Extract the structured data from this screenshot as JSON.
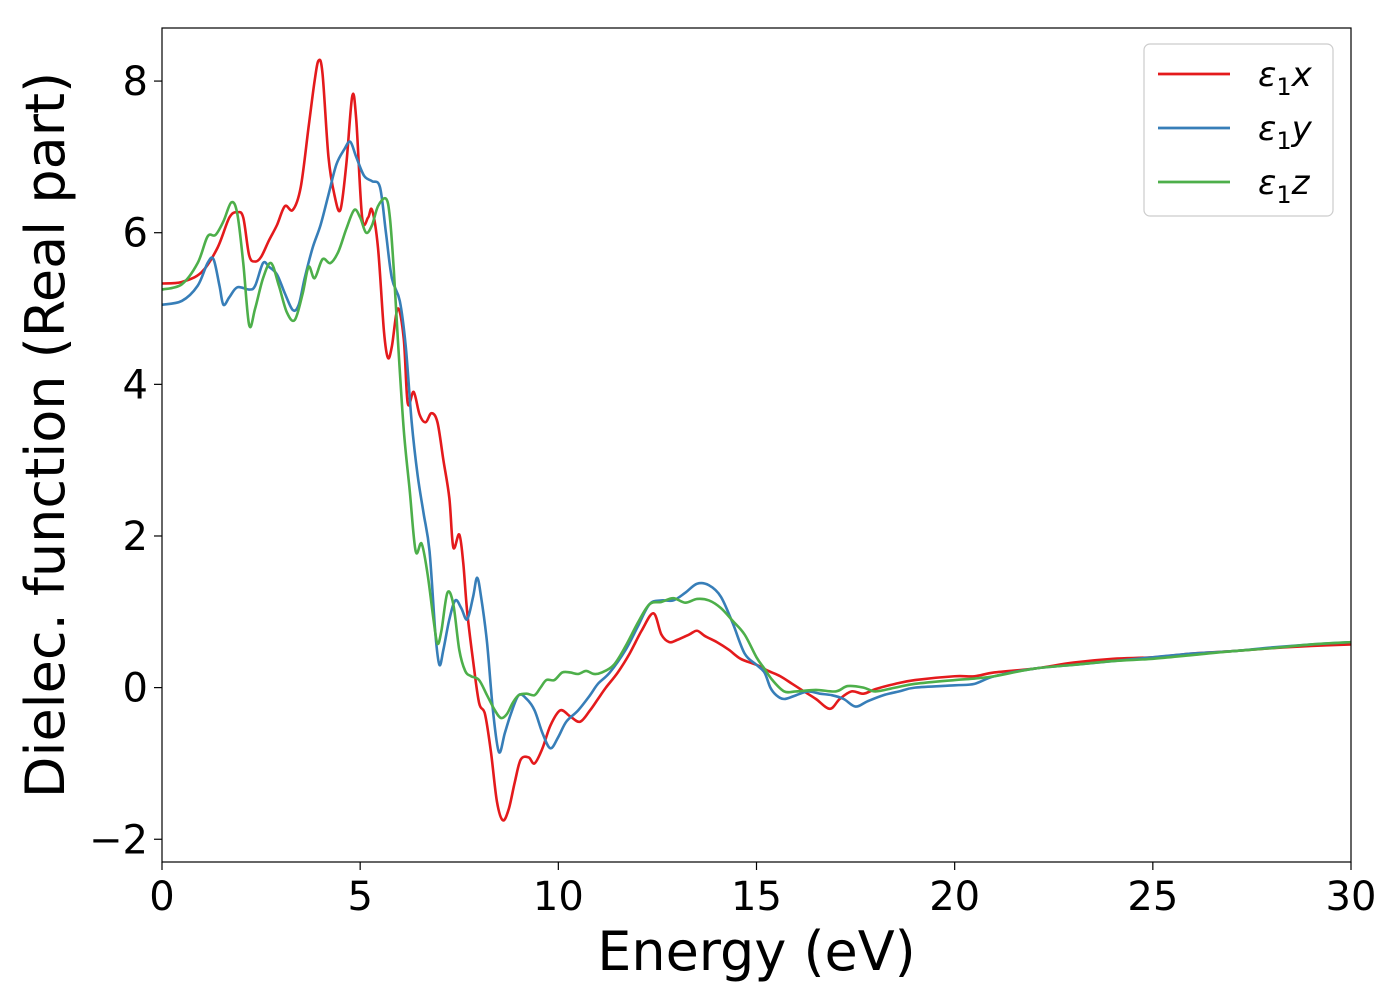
{
  "chart_data": {
    "type": "line",
    "title": "",
    "xlabel": "Energy (eV)",
    "ylabel": "Dielec. function (Real part)",
    "xlim": [
      0,
      30
    ],
    "ylim": [
      -2.3,
      8.7
    ],
    "xticks": [
      0,
      5,
      10,
      15,
      20,
      25,
      30
    ],
    "yticks": [
      -2,
      0,
      2,
      4,
      6,
      8
    ],
    "xtick_labels": [
      "0",
      "5",
      "10",
      "15",
      "20",
      "25",
      "30"
    ],
    "ytick_labels": [
      "−2",
      "0",
      "2",
      "4",
      "6",
      "8"
    ],
    "grid": false,
    "legend": "top-right",
    "series": [
      {
        "name": "ε₁x",
        "label_main": "ε",
        "label_sub": "1",
        "label_tail": "x",
        "color": "#e41a1c",
        "points": [
          [
            0,
            5.33
          ],
          [
            0.5,
            5.35
          ],
          [
            1.0,
            5.48
          ],
          [
            1.4,
            5.8
          ],
          [
            1.7,
            6.2
          ],
          [
            1.9,
            6.27
          ],
          [
            2.05,
            6.2
          ],
          [
            2.2,
            5.7
          ],
          [
            2.35,
            5.62
          ],
          [
            2.5,
            5.68
          ],
          [
            2.7,
            5.9
          ],
          [
            2.9,
            6.1
          ],
          [
            3.1,
            6.35
          ],
          [
            3.3,
            6.3
          ],
          [
            3.5,
            6.6
          ],
          [
            3.7,
            7.4
          ],
          [
            3.85,
            8.0
          ],
          [
            3.95,
            8.27
          ],
          [
            4.05,
            8.1
          ],
          [
            4.2,
            7.0
          ],
          [
            4.35,
            6.5
          ],
          [
            4.5,
            6.3
          ],
          [
            4.65,
            6.9
          ],
          [
            4.8,
            7.8
          ],
          [
            4.9,
            7.5
          ],
          [
            5.05,
            6.2
          ],
          [
            5.2,
            6.2
          ],
          [
            5.3,
            6.3
          ],
          [
            5.45,
            5.8
          ],
          [
            5.6,
            4.7
          ],
          [
            5.7,
            4.35
          ],
          [
            5.8,
            4.5
          ],
          [
            5.95,
            5.0
          ],
          [
            6.1,
            4.6
          ],
          [
            6.2,
            3.75
          ],
          [
            6.35,
            3.9
          ],
          [
            6.5,
            3.6
          ],
          [
            6.65,
            3.5
          ],
          [
            6.8,
            3.62
          ],
          [
            6.95,
            3.5
          ],
          [
            7.1,
            3.0
          ],
          [
            7.25,
            2.5
          ],
          [
            7.35,
            1.85
          ],
          [
            7.5,
            2.02
          ],
          [
            7.6,
            1.65
          ],
          [
            7.7,
            1.0
          ],
          [
            7.85,
            0.35
          ],
          [
            8.0,
            -0.2
          ],
          [
            8.15,
            -0.35
          ],
          [
            8.3,
            -0.85
          ],
          [
            8.45,
            -1.5
          ],
          [
            8.6,
            -1.75
          ],
          [
            8.75,
            -1.6
          ],
          [
            8.9,
            -1.25
          ],
          [
            9.05,
            -0.95
          ],
          [
            9.25,
            -0.92
          ],
          [
            9.4,
            -1.0
          ],
          [
            9.6,
            -0.8
          ],
          [
            9.8,
            -0.5
          ],
          [
            10.05,
            -0.3
          ],
          [
            10.3,
            -0.38
          ],
          [
            10.55,
            -0.45
          ],
          [
            10.8,
            -0.3
          ],
          [
            11.0,
            -0.15
          ],
          [
            11.2,
            0.0
          ],
          [
            11.5,
            0.2
          ],
          [
            11.8,
            0.45
          ],
          [
            12.1,
            0.75
          ],
          [
            12.4,
            0.98
          ],
          [
            12.6,
            0.7
          ],
          [
            12.8,
            0.6
          ],
          [
            13.0,
            0.63
          ],
          [
            13.3,
            0.7
          ],
          [
            13.5,
            0.75
          ],
          [
            13.7,
            0.68
          ],
          [
            14.0,
            0.6
          ],
          [
            14.3,
            0.5
          ],
          [
            14.6,
            0.38
          ],
          [
            15.0,
            0.3
          ],
          [
            15.3,
            0.22
          ],
          [
            15.6,
            0.15
          ],
          [
            15.9,
            0.05
          ],
          [
            16.2,
            -0.05
          ],
          [
            16.5,
            -0.15
          ],
          [
            16.85,
            -0.28
          ],
          [
            17.1,
            -0.15
          ],
          [
            17.4,
            -0.05
          ],
          [
            17.7,
            -0.08
          ],
          [
            18.0,
            -0.02
          ],
          [
            18.5,
            0.05
          ],
          [
            19.0,
            0.1
          ],
          [
            20.0,
            0.15
          ],
          [
            20.5,
            0.15
          ],
          [
            21.0,
            0.2
          ],
          [
            22.0,
            0.25
          ],
          [
            23.0,
            0.33
          ],
          [
            24.0,
            0.38
          ],
          [
            25.0,
            0.4
          ],
          [
            26.0,
            0.45
          ],
          [
            27.0,
            0.48
          ],
          [
            28.0,
            0.52
          ],
          [
            29.0,
            0.55
          ],
          [
            30.0,
            0.57
          ]
        ]
      },
      {
        "name": "ε₁y",
        "label_main": "ε",
        "label_sub": "1",
        "label_tail": "y",
        "color": "#377eb8",
        "points": [
          [
            0,
            5.05
          ],
          [
            0.5,
            5.1
          ],
          [
            0.9,
            5.3
          ],
          [
            1.15,
            5.6
          ],
          [
            1.3,
            5.65
          ],
          [
            1.45,
            5.3
          ],
          [
            1.55,
            5.05
          ],
          [
            1.7,
            5.15
          ],
          [
            1.9,
            5.28
          ],
          [
            2.2,
            5.25
          ],
          [
            2.35,
            5.3
          ],
          [
            2.55,
            5.6
          ],
          [
            2.7,
            5.55
          ],
          [
            2.9,
            5.45
          ],
          [
            3.1,
            5.2
          ],
          [
            3.3,
            4.98
          ],
          [
            3.45,
            5.05
          ],
          [
            3.6,
            5.4
          ],
          [
            3.8,
            5.8
          ],
          [
            4.0,
            6.1
          ],
          [
            4.2,
            6.5
          ],
          [
            4.4,
            6.9
          ],
          [
            4.6,
            7.1
          ],
          [
            4.75,
            7.2
          ],
          [
            4.9,
            7.0
          ],
          [
            5.1,
            6.75
          ],
          [
            5.3,
            6.68
          ],
          [
            5.5,
            6.6
          ],
          [
            5.65,
            6.0
          ],
          [
            5.8,
            5.4
          ],
          [
            6.0,
            5.1
          ],
          [
            6.15,
            4.5
          ],
          [
            6.3,
            3.5
          ],
          [
            6.45,
            2.8
          ],
          [
            6.6,
            2.3
          ],
          [
            6.75,
            1.8
          ],
          [
            6.9,
            0.7
          ],
          [
            7.0,
            0.3
          ],
          [
            7.1,
            0.5
          ],
          [
            7.25,
            0.9
          ],
          [
            7.4,
            1.15
          ],
          [
            7.55,
            1.05
          ],
          [
            7.7,
            0.9
          ],
          [
            7.85,
            1.2
          ],
          [
            7.95,
            1.45
          ],
          [
            8.05,
            1.2
          ],
          [
            8.2,
            0.6
          ],
          [
            8.35,
            -0.3
          ],
          [
            8.5,
            -0.85
          ],
          [
            8.65,
            -0.6
          ],
          [
            8.8,
            -0.35
          ],
          [
            9.0,
            -0.1
          ],
          [
            9.2,
            -0.15
          ],
          [
            9.4,
            -0.3
          ],
          [
            9.6,
            -0.6
          ],
          [
            9.8,
            -0.8
          ],
          [
            10.0,
            -0.65
          ],
          [
            10.2,
            -0.45
          ],
          [
            10.5,
            -0.3
          ],
          [
            10.8,
            -0.1
          ],
          [
            11.0,
            0.05
          ],
          [
            11.3,
            0.2
          ],
          [
            11.7,
            0.5
          ],
          [
            12.0,
            0.8
          ],
          [
            12.3,
            1.1
          ],
          [
            12.6,
            1.15
          ],
          [
            12.9,
            1.15
          ],
          [
            13.2,
            1.25
          ],
          [
            13.5,
            1.37
          ],
          [
            13.8,
            1.35
          ],
          [
            14.1,
            1.2
          ],
          [
            14.4,
            0.85
          ],
          [
            14.7,
            0.45
          ],
          [
            15.0,
            0.3
          ],
          [
            15.2,
            0.2
          ],
          [
            15.35,
            0.0
          ],
          [
            15.5,
            -0.1
          ],
          [
            15.7,
            -0.15
          ],
          [
            16.0,
            -0.1
          ],
          [
            16.3,
            -0.05
          ],
          [
            16.6,
            -0.08
          ],
          [
            16.9,
            -0.1
          ],
          [
            17.2,
            -0.15
          ],
          [
            17.5,
            -0.25
          ],
          [
            17.8,
            -0.18
          ],
          [
            18.2,
            -0.1
          ],
          [
            18.6,
            -0.05
          ],
          [
            19.0,
            0.0
          ],
          [
            20.0,
            0.03
          ],
          [
            20.5,
            0.05
          ],
          [
            21.0,
            0.15
          ],
          [
            22.0,
            0.25
          ],
          [
            23.0,
            0.3
          ],
          [
            24.0,
            0.35
          ],
          [
            25.0,
            0.4
          ],
          [
            26.0,
            0.45
          ],
          [
            27.0,
            0.48
          ],
          [
            28.0,
            0.53
          ],
          [
            29.0,
            0.57
          ],
          [
            30.0,
            0.6
          ]
        ]
      },
      {
        "name": "ε₁z",
        "label_main": "ε",
        "label_sub": "1",
        "label_tail": "z",
        "color": "#4daf4a",
        "points": [
          [
            0,
            5.25
          ],
          [
            0.5,
            5.32
          ],
          [
            0.9,
            5.6
          ],
          [
            1.15,
            5.95
          ],
          [
            1.35,
            5.97
          ],
          [
            1.55,
            6.15
          ],
          [
            1.75,
            6.4
          ],
          [
            1.9,
            6.25
          ],
          [
            2.05,
            5.6
          ],
          [
            2.2,
            4.78
          ],
          [
            2.35,
            5.0
          ],
          [
            2.55,
            5.4
          ],
          [
            2.75,
            5.6
          ],
          [
            2.95,
            5.3
          ],
          [
            3.15,
            4.95
          ],
          [
            3.35,
            4.85
          ],
          [
            3.55,
            5.2
          ],
          [
            3.7,
            5.55
          ],
          [
            3.85,
            5.4
          ],
          [
            4.05,
            5.65
          ],
          [
            4.25,
            5.6
          ],
          [
            4.45,
            5.75
          ],
          [
            4.65,
            6.05
          ],
          [
            4.85,
            6.3
          ],
          [
            5.0,
            6.2
          ],
          [
            5.15,
            6.0
          ],
          [
            5.3,
            6.1
          ],
          [
            5.45,
            6.35
          ],
          [
            5.65,
            6.45
          ],
          [
            5.75,
            6.2
          ],
          [
            5.85,
            5.5
          ],
          [
            5.95,
            4.6
          ],
          [
            6.1,
            3.4
          ],
          [
            6.25,
            2.6
          ],
          [
            6.4,
            1.8
          ],
          [
            6.55,
            1.9
          ],
          [
            6.7,
            1.5
          ],
          [
            6.85,
            0.9
          ],
          [
            6.95,
            0.58
          ],
          [
            7.05,
            0.75
          ],
          [
            7.2,
            1.25
          ],
          [
            7.35,
            1.1
          ],
          [
            7.5,
            0.5
          ],
          [
            7.65,
            0.22
          ],
          [
            7.8,
            0.15
          ],
          [
            8.0,
            0.1
          ],
          [
            8.2,
            -0.1
          ],
          [
            8.4,
            -0.3
          ],
          [
            8.55,
            -0.4
          ],
          [
            8.7,
            -0.35
          ],
          [
            8.85,
            -0.2
          ],
          [
            9.0,
            -0.1
          ],
          [
            9.2,
            -0.08
          ],
          [
            9.4,
            -0.1
          ],
          [
            9.55,
            0.0
          ],
          [
            9.7,
            0.1
          ],
          [
            9.9,
            0.1
          ],
          [
            10.1,
            0.2
          ],
          [
            10.3,
            0.2
          ],
          [
            10.5,
            0.18
          ],
          [
            10.7,
            0.22
          ],
          [
            10.9,
            0.18
          ],
          [
            11.1,
            0.2
          ],
          [
            11.4,
            0.3
          ],
          [
            11.7,
            0.55
          ],
          [
            12.0,
            0.85
          ],
          [
            12.3,
            1.1
          ],
          [
            12.6,
            1.13
          ],
          [
            12.9,
            1.18
          ],
          [
            13.2,
            1.12
          ],
          [
            13.5,
            1.17
          ],
          [
            13.8,
            1.15
          ],
          [
            14.1,
            1.05
          ],
          [
            14.4,
            0.88
          ],
          [
            14.7,
            0.7
          ],
          [
            15.0,
            0.4
          ],
          [
            15.2,
            0.25
          ],
          [
            15.4,
            0.1
          ],
          [
            15.7,
            -0.05
          ],
          [
            16.0,
            -0.05
          ],
          [
            16.5,
            -0.03
          ],
          [
            17.0,
            -0.05
          ],
          [
            17.3,
            0.02
          ],
          [
            17.7,
            0.0
          ],
          [
            18.0,
            -0.05
          ],
          [
            18.5,
            0.0
          ],
          [
            19.0,
            0.05
          ],
          [
            20.0,
            0.1
          ],
          [
            20.5,
            0.12
          ],
          [
            21.0,
            0.15
          ],
          [
            22.0,
            0.25
          ],
          [
            23.0,
            0.3
          ],
          [
            24.0,
            0.35
          ],
          [
            25.0,
            0.38
          ],
          [
            26.0,
            0.43
          ],
          [
            27.0,
            0.48
          ],
          [
            28.0,
            0.52
          ],
          [
            29.0,
            0.57
          ],
          [
            30.0,
            0.6
          ]
        ]
      }
    ]
  }
}
